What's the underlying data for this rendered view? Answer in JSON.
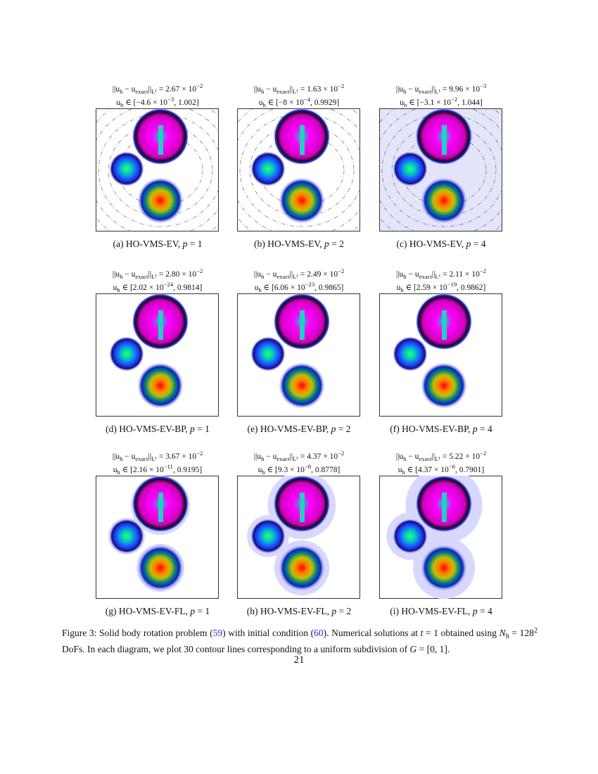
{
  "figure": {
    "panels": [
      {
        "error": [
          {
            "t": "||u"
          },
          {
            "t": "h",
            "s": "sub"
          },
          {
            "t": " − u"
          },
          {
            "t": "exact",
            "s": "sub"
          },
          {
            "t": "||"
          },
          {
            "t": "L¹",
            "s": "sub"
          },
          {
            "t": " = 2.67 × 10"
          },
          {
            "t": "−2",
            "s": "sup"
          }
        ],
        "range": [
          {
            "t": "u"
          },
          {
            "t": "h",
            "s": "sub"
          },
          {
            "t": " ∈ [−4.6 × 10"
          },
          {
            "t": "−3",
            "s": "sup"
          },
          {
            "t": ", 1.002]"
          }
        ],
        "caption": [
          {
            "t": "(a) HO-VMS-EV, "
          },
          {
            "t": "p",
            "s": "it"
          },
          {
            "t": " = 1"
          }
        ]
      },
      {
        "error": [
          {
            "t": "||u"
          },
          {
            "t": "h",
            "s": "sub"
          },
          {
            "t": " − u"
          },
          {
            "t": "exact",
            "s": "sub"
          },
          {
            "t": "||"
          },
          {
            "t": "L¹",
            "s": "sub"
          },
          {
            "t": " = 1.63 × 10"
          },
          {
            "t": "−2",
            "s": "sup"
          }
        ],
        "range": [
          {
            "t": "u"
          },
          {
            "t": "h",
            "s": "sub"
          },
          {
            "t": " ∈ [−8 × 10"
          },
          {
            "t": "−4",
            "s": "sup"
          },
          {
            "t": ", 0.9929]"
          }
        ],
        "caption": [
          {
            "t": "(b) HO-VMS-EV, "
          },
          {
            "t": "p",
            "s": "it"
          },
          {
            "t": " = 2"
          }
        ]
      },
      {
        "error": [
          {
            "t": "||u"
          },
          {
            "t": "h",
            "s": "sub"
          },
          {
            "t": " − u"
          },
          {
            "t": "exact",
            "s": "sub"
          },
          {
            "t": "||"
          },
          {
            "t": "L¹",
            "s": "sub"
          },
          {
            "t": " = 9.96 × 10"
          },
          {
            "t": "−3",
            "s": "sup"
          }
        ],
        "range": [
          {
            "t": "u"
          },
          {
            "t": "h",
            "s": "sub"
          },
          {
            "t": " ∈ [−3.1 × 10"
          },
          {
            "t": "−2",
            "s": "sup"
          },
          {
            "t": ", 1.044]"
          }
        ],
        "caption": [
          {
            "t": "(c) HO-VMS-EV, "
          },
          {
            "t": "p",
            "s": "it"
          },
          {
            "t": " = 4"
          }
        ]
      },
      {
        "error": [
          {
            "t": "||u"
          },
          {
            "t": "h",
            "s": "sub"
          },
          {
            "t": " − u"
          },
          {
            "t": "exact",
            "s": "sub"
          },
          {
            "t": "||"
          },
          {
            "t": "L¹",
            "s": "sub"
          },
          {
            "t": " = 2.80 × 10"
          },
          {
            "t": "−2",
            "s": "sup"
          }
        ],
        "range": [
          {
            "t": "u"
          },
          {
            "t": "h",
            "s": "sub"
          },
          {
            "t": " ∈ [2.02 × 10"
          },
          {
            "t": "−24",
            "s": "sup"
          },
          {
            "t": ", 0.9814]"
          }
        ],
        "caption": [
          {
            "t": "(d) HO-VMS-EV-BP, "
          },
          {
            "t": "p",
            "s": "it"
          },
          {
            "t": " = 1"
          }
        ]
      },
      {
        "error": [
          {
            "t": "||u"
          },
          {
            "t": "h",
            "s": "sub"
          },
          {
            "t": " − u"
          },
          {
            "t": "exact",
            "s": "sub"
          },
          {
            "t": "||"
          },
          {
            "t": "L¹",
            "s": "sub"
          },
          {
            "t": " = 2.49 × 10"
          },
          {
            "t": "−2",
            "s": "sup"
          }
        ],
        "range": [
          {
            "t": "u"
          },
          {
            "t": "h",
            "s": "sub"
          },
          {
            "t": " ∈ [6.06 × 10"
          },
          {
            "t": "−23",
            "s": "sup"
          },
          {
            "t": ", 0.9865]"
          }
        ],
        "caption": [
          {
            "t": "(e) HO-VMS-EV-BP, "
          },
          {
            "t": "p",
            "s": "it"
          },
          {
            "t": " = 2"
          }
        ]
      },
      {
        "error": [
          {
            "t": "||u"
          },
          {
            "t": "h",
            "s": "sub"
          },
          {
            "t": " − u"
          },
          {
            "t": "exact",
            "s": "sub"
          },
          {
            "t": "||"
          },
          {
            "t": "L¹",
            "s": "sub"
          },
          {
            "t": " = 2.11 × 10"
          },
          {
            "t": "−2",
            "s": "sup"
          }
        ],
        "range": [
          {
            "t": "u"
          },
          {
            "t": "h",
            "s": "sub"
          },
          {
            "t": " ∈ [2.59 × 10"
          },
          {
            "t": "−19",
            "s": "sup"
          },
          {
            "t": ", 0.9862]"
          }
        ],
        "caption": [
          {
            "t": "(f) HO-VMS-EV-BP, "
          },
          {
            "t": "p",
            "s": "it"
          },
          {
            "t": " = 4"
          }
        ]
      },
      {
        "error": [
          {
            "t": "||u"
          },
          {
            "t": "h",
            "s": "sub"
          },
          {
            "t": " − u"
          },
          {
            "t": "exact",
            "s": "sub"
          },
          {
            "t": "||"
          },
          {
            "t": "L¹",
            "s": "sub"
          },
          {
            "t": " = 3.67 × 10"
          },
          {
            "t": "−2",
            "s": "sup"
          }
        ],
        "range": [
          {
            "t": "u"
          },
          {
            "t": "h",
            "s": "sub"
          },
          {
            "t": " ∈ [2.16 × 10"
          },
          {
            "t": "−11",
            "s": "sup"
          },
          {
            "t": ", 0.9195]"
          }
        ],
        "caption": [
          {
            "t": "(g) HO-VMS-EV-FL, "
          },
          {
            "t": "p",
            "s": "it"
          },
          {
            "t": " = 1"
          }
        ]
      },
      {
        "error": [
          {
            "t": "||u"
          },
          {
            "t": "h",
            "s": "sub"
          },
          {
            "t": " − u"
          },
          {
            "t": "exact",
            "s": "sub"
          },
          {
            "t": "||"
          },
          {
            "t": "L¹",
            "s": "sub"
          },
          {
            "t": " = 4.37 × 10"
          },
          {
            "t": "−2",
            "s": "sup"
          }
        ],
        "range": [
          {
            "t": "u"
          },
          {
            "t": "h",
            "s": "sub"
          },
          {
            "t": " ∈ [9.3 × 10"
          },
          {
            "t": "−8",
            "s": "sup"
          },
          {
            "t": ", 0.8778]"
          }
        ],
        "caption": [
          {
            "t": "(h) HO-VMS-EV-FL, "
          },
          {
            "t": "p",
            "s": "it"
          },
          {
            "t": " = 2"
          }
        ]
      },
      {
        "error": [
          {
            "t": "||u"
          },
          {
            "t": "h",
            "s": "sub"
          },
          {
            "t": " − u"
          },
          {
            "t": "exact",
            "s": "sub"
          },
          {
            "t": "||"
          },
          {
            "t": "L¹",
            "s": "sub"
          },
          {
            "t": " = 5.22 × 10"
          },
          {
            "t": "−2",
            "s": "sup"
          }
        ],
        "range": [
          {
            "t": "u"
          },
          {
            "t": "h",
            "s": "sub"
          },
          {
            "t": " ∈ [4.37 × 10"
          },
          {
            "t": "−6",
            "s": "sup"
          },
          {
            "t": ", 0.7901]"
          }
        ],
        "caption": [
          {
            "t": "(i) HO-VMS-EV-FL, "
          },
          {
            "t": "p",
            "s": "it"
          },
          {
            "t": " = 4"
          }
        ]
      }
    ],
    "caption": [
      {
        "t": "Figure 3: Solid body rotation problem ("
      },
      {
        "t": "59",
        "s": "link"
      },
      {
        "t": ") with initial condition ("
      },
      {
        "t": "60",
        "s": "link"
      },
      {
        "t": "). Numerical solutions at "
      },
      {
        "t": "t",
        "s": "it"
      },
      {
        "t": " = 1 obtained using "
      },
      {
        "t": "N",
        "s": "it"
      },
      {
        "t": "h",
        "s": "sub"
      },
      {
        "t": " = 128"
      },
      {
        "t": "2",
        "s": "sup"
      },
      {
        "t": " DoFs. In each diagram, we plot 30 contour lines corresponding to a uniform subdivision of "
      },
      {
        "t": "G",
        "s": "it"
      },
      {
        "t": " = [0, 1]."
      }
    ]
  },
  "page_number": "21"
}
